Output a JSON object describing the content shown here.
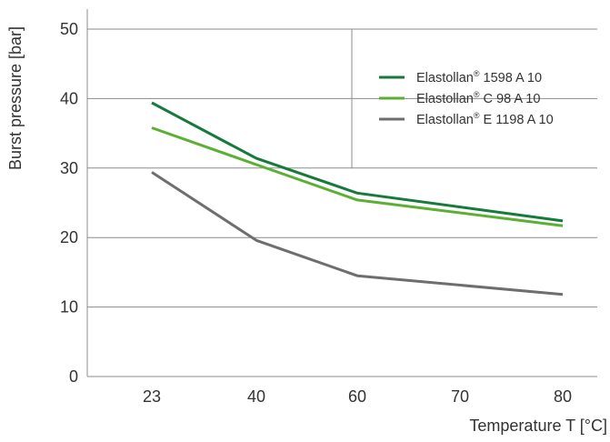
{
  "chart_data": {
    "type": "line",
    "title": "",
    "xlabel": "Temperature T [°C]",
    "ylabel": "Burst pressure  [bar]",
    "categories": [
      "23",
      "40",
      "60",
      "70",
      "80"
    ],
    "x_positions": [
      23,
      40,
      60,
      70,
      80
    ],
    "yticks": [
      "0",
      "10",
      "20",
      "30",
      "40",
      "50"
    ],
    "ylim": [
      0,
      50
    ],
    "grid": "horizontal",
    "legend_placement": "top-right",
    "series": [
      {
        "name": "Elastollan® 1598 A 10",
        "label_base": "Elastollan",
        "label_sup": "®",
        "label_rest": " 1598 A 10",
        "color": "#167a3a",
        "points": [
          [
            23,
            39.4
          ],
          [
            40,
            31.4
          ],
          [
            60,
            26.4
          ],
          [
            80,
            22.4
          ]
        ]
      },
      {
        "name": "Elastollan® C 98 A 10",
        "label_base": "Elastollan",
        "label_sup": "®",
        "label_rest": " C 98 A 10",
        "color": "#5bb034",
        "points": [
          [
            23,
            35.8
          ],
          [
            40,
            30.5
          ],
          [
            60,
            25.4
          ],
          [
            80,
            21.7
          ]
        ]
      },
      {
        "name": "Elastollan® E 1198 A 10",
        "label_base": "Elastollan",
        "label_sup": "®",
        "label_rest": " E 1198 A 10",
        "color": "#6e6e6e",
        "points": [
          [
            23,
            29.4
          ],
          [
            40,
            19.6
          ],
          [
            60,
            14.5
          ],
          [
            80,
            11.8
          ]
        ]
      }
    ]
  }
}
